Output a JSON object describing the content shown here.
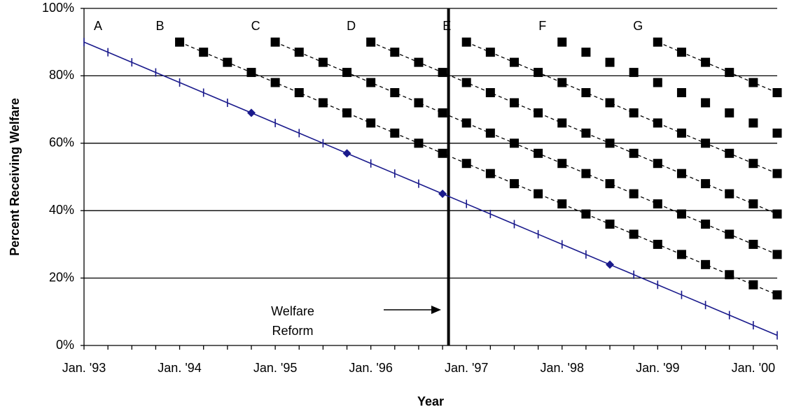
{
  "chart_data": {
    "type": "line",
    "x_label": "Year",
    "y_label": "Percent Receiving Welfare",
    "categories": [
      "Jan. '93",
      null,
      null,
      null,
      "Jan. '94",
      null,
      null,
      null,
      "Jan. '95",
      null,
      null,
      null,
      "Jan. '96",
      null,
      null,
      null,
      "Jan. '97",
      null,
      null,
      null,
      "Jan. '98",
      null,
      null,
      null,
      "Jan. '99",
      null,
      null,
      null,
      "Jan. '00",
      null
    ],
    "ylim": [
      0,
      100
    ],
    "yticks": [
      {
        "value": 0,
        "label": "0%"
      },
      {
        "value": 20,
        "label": "20%"
      },
      {
        "value": 40,
        "label": "40%"
      },
      {
        "value": 60,
        "label": "60%"
      },
      {
        "value": 80,
        "label": "80%"
      },
      {
        "value": 100,
        "label": "100%"
      }
    ],
    "grid": true,
    "series": [
      {
        "name": "A",
        "color": "#1a1a8c",
        "line": "solid",
        "marker": "tick",
        "highlight_indices": [
          7,
          11,
          15,
          22
        ],
        "values": [
          90,
          87,
          84,
          81,
          78,
          75,
          72,
          69,
          66,
          63,
          60,
          57,
          54,
          51,
          48,
          45,
          42,
          39,
          36,
          33,
          30,
          27,
          24,
          21,
          18,
          15,
          12,
          9,
          6,
          3
        ]
      },
      {
        "name": "B",
        "color": "#000000",
        "line": "dashed",
        "marker": "square",
        "values": [
          null,
          null,
          null,
          null,
          90,
          87,
          84,
          81,
          78,
          75,
          72,
          69,
          66,
          63,
          60,
          57,
          54,
          51,
          48,
          45,
          42,
          39,
          36,
          33,
          30,
          27,
          24,
          21,
          18,
          15
        ]
      },
      {
        "name": "C",
        "color": "#000000",
        "line": "dashed",
        "marker": "square",
        "values": [
          null,
          null,
          null,
          null,
          null,
          null,
          null,
          null,
          90,
          87,
          84,
          81,
          78,
          75,
          72,
          69,
          66,
          63,
          60,
          57,
          54,
          51,
          48,
          45,
          42,
          39,
          36,
          33,
          30,
          27
        ]
      },
      {
        "name": "D",
        "color": "#000000",
        "line": "dashed",
        "marker": "square",
        "values": [
          null,
          null,
          null,
          null,
          null,
          null,
          null,
          null,
          null,
          null,
          null,
          null,
          90,
          87,
          84,
          81,
          78,
          75,
          72,
          69,
          66,
          63,
          60,
          57,
          54,
          51,
          48,
          45,
          42,
          39
        ]
      },
      {
        "name": "E",
        "color": "#000000",
        "line": "dashed",
        "marker": "square",
        "values": [
          null,
          null,
          null,
          null,
          null,
          null,
          null,
          null,
          null,
          null,
          null,
          null,
          null,
          null,
          null,
          null,
          90,
          87,
          84,
          81,
          78,
          75,
          72,
          69,
          66,
          63,
          60,
          57,
          54,
          51
        ]
      },
      {
        "name": "F",
        "color": "#000000",
        "line": "none",
        "marker": "square",
        "values": [
          null,
          null,
          null,
          null,
          null,
          null,
          null,
          null,
          null,
          null,
          null,
          null,
          null,
          null,
          null,
          null,
          null,
          null,
          null,
          null,
          90,
          87,
          84,
          81,
          78,
          75,
          72,
          69,
          66,
          63
        ]
      },
      {
        "name": "G",
        "color": "#000000",
        "line": "dashed",
        "marker": "square",
        "values": [
          null,
          null,
          null,
          null,
          null,
          null,
          null,
          null,
          null,
          null,
          null,
          null,
          null,
          null,
          null,
          null,
          null,
          null,
          null,
          null,
          null,
          null,
          null,
          null,
          90,
          87,
          84,
          81,
          78,
          75
        ]
      }
    ],
    "reference_line": {
      "x": 15.25,
      "text": "Welfare Reform"
    }
  }
}
